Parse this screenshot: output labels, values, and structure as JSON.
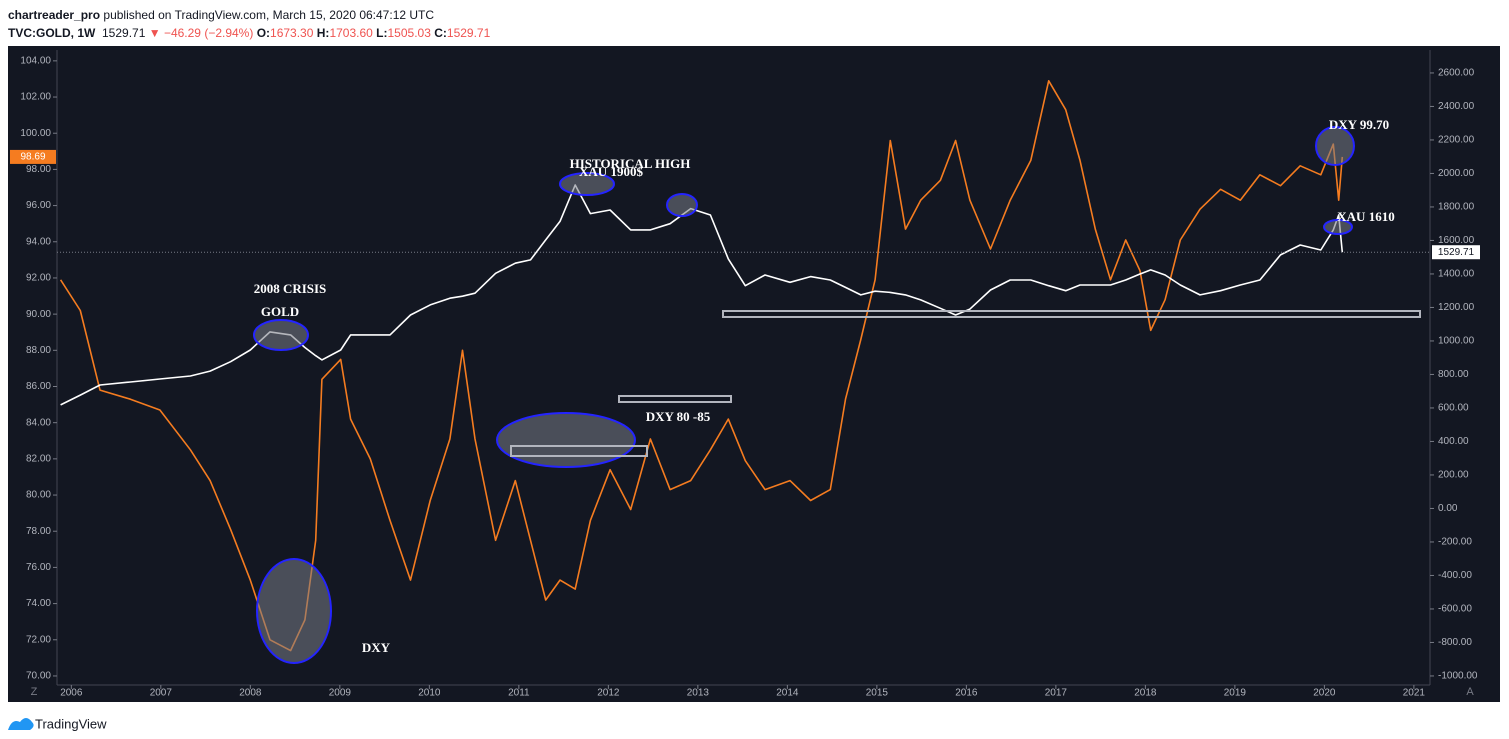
{
  "header": {
    "author": "chartreader_pro",
    "published": "published on TradingView.com, March 15, 2020 06:47:12 UTC",
    "symbol": "TVC:GOLD, 1W",
    "last": "1529.71",
    "change": "▼ −46.29 (−2.94%)",
    "o_label": "O:",
    "o": "1673.30",
    "h_label": "H:",
    "h": "1703.60",
    "l_label": "L:",
    "l": "1505.03",
    "c_label": "C:",
    "c": "1529.71"
  },
  "footer": {
    "brand": "TradingView"
  },
  "axis_buttons": [
    "Z",
    "A"
  ],
  "chart_data": {
    "type": "line",
    "x": [
      2005.88,
      2006.1,
      2006.32,
      2006.66,
      2006.99,
      2007.33,
      2007.55,
      2007.78,
      2008.0,
      2008.22,
      2008.45,
      2008.61,
      2008.73,
      2008.8,
      2009.01,
      2009.12,
      2009.34,
      2009.56,
      2009.79,
      2010.01,
      2010.23,
      2010.37,
      2010.51,
      2010.74,
      2010.96,
      2011.13,
      2011.3,
      2011.46,
      2011.63,
      2011.8,
      2012.02,
      2012.25,
      2012.47,
      2012.69,
      2012.92,
      2013.14,
      2013.34,
      2013.53,
      2013.75,
      2014.03,
      2014.26,
      2014.48,
      2014.65,
      2014.82,
      2014.98,
      2015.15,
      2015.32,
      2015.49,
      2015.71,
      2015.88,
      2016.04,
      2016.27,
      2016.49,
      2016.72,
      2016.92,
      2017.11,
      2017.27,
      2017.44,
      2017.61,
      2017.78,
      2017.94,
      2018.06,
      2018.22,
      2018.39,
      2018.61,
      2018.84,
      2019.06,
      2019.28,
      2019.51,
      2019.73,
      2019.96,
      2020.1,
      2020.16,
      2020.2
    ],
    "series": [
      {
        "name": "DXY",
        "color": "#f57c20",
        "axis": "y",
        "values": [
          91.9,
          90.2,
          85.8,
          85.3,
          84.7,
          82.5,
          80.8,
          78.1,
          75.3,
          72.0,
          71.4,
          73.1,
          77.5,
          86.4,
          87.5,
          84.2,
          82.0,
          78.6,
          75.3,
          79.7,
          83.1,
          88.0,
          83.1,
          77.5,
          80.8,
          77.5,
          74.2,
          75.3,
          74.8,
          78.6,
          81.4,
          79.2,
          83.1,
          80.3,
          80.8,
          82.5,
          84.2,
          81.9,
          80.3,
          80.8,
          79.7,
          80.3,
          85.3,
          88.6,
          91.9,
          99.6,
          94.7,
          96.3,
          97.4,
          99.6,
          96.3,
          93.6,
          96.3,
          98.5,
          102.9,
          101.3,
          98.5,
          94.7,
          91.9,
          94.1,
          92.4,
          89.1,
          90.8,
          94.1,
          95.8,
          96.9,
          96.3,
          97.7,
          97.1,
          98.2,
          97.7,
          99.4,
          96.3,
          98.69
        ]
      },
      {
        "name": "TVC:GOLD",
        "color": "#ffffff",
        "axis": "y2",
        "values": [
          618,
          677,
          737,
          755,
          773,
          791,
          820,
          876,
          946,
          1054,
          1036,
          961,
          912,
          887,
          946,
          1036,
          1036,
          1036,
          1155,
          1215,
          1255,
          1267,
          1285,
          1404,
          1464,
          1484,
          1603,
          1714,
          1931,
          1760,
          1782,
          1663,
          1663,
          1700,
          1790,
          1752,
          1490,
          1330,
          1394,
          1350,
          1384,
          1364,
          1320,
          1275,
          1297,
          1290,
          1275,
          1245,
          1195,
          1155,
          1190,
          1304,
          1364,
          1364,
          1330,
          1300,
          1334,
          1334,
          1334,
          1364,
          1400,
          1424,
          1394,
          1334,
          1275,
          1300,
          1334,
          1364,
          1514,
          1573,
          1543,
          1663,
          1752,
          1529.71
        ]
      }
    ],
    "xlim": [
      2005.84,
      2021.18
    ],
    "xticks": [
      2006,
      2007,
      2008,
      2009,
      2010,
      2011,
      2012,
      2013,
      2014,
      2015,
      2016,
      2017,
      2018,
      2019,
      2020,
      2021
    ],
    "ylim": [
      69.5,
      104.6
    ],
    "yticks": [
      {
        "value": 70,
        "label": "70.00"
      },
      {
        "value": 72,
        "label": "72.00"
      },
      {
        "value": 74,
        "label": "74.00"
      },
      {
        "value": 76,
        "label": "76.00"
      },
      {
        "value": 78,
        "label": "78.00"
      },
      {
        "value": 80,
        "label": "80.00"
      },
      {
        "value": 82,
        "label": "82.00"
      },
      {
        "value": 84,
        "label": "84.00"
      },
      {
        "value": 86,
        "label": "86.00"
      },
      {
        "value": 88,
        "label": "88.00"
      },
      {
        "value": 90,
        "label": "90.00"
      },
      {
        "value": 92,
        "label": "92.00"
      },
      {
        "value": 94,
        "label": "94.00"
      },
      {
        "value": 96,
        "label": "96.00"
      },
      {
        "value": 98,
        "label": "98.00"
      },
      {
        "value": 100,
        "label": "100.00"
      },
      {
        "value": 102,
        "label": "102.00"
      },
      {
        "value": 104,
        "label": "104.00"
      }
    ],
    "y2lim": [
      -1054,
      2737
    ],
    "y2ticks": [
      {
        "value": -1000,
        "label": "-1000.00"
      },
      {
        "value": -800,
        "label": "-800.00"
      },
      {
        "value": -600,
        "label": "-600.00"
      },
      {
        "value": -400,
        "label": "-400.00"
      },
      {
        "value": -200,
        "label": "-200.00"
      },
      {
        "value": 0,
        "label": "0.00"
      },
      {
        "value": 200,
        "label": "200.00"
      },
      {
        "value": 400,
        "label": "400.00"
      },
      {
        "value": 600,
        "label": "600.00"
      },
      {
        "value": 800,
        "label": "800.00"
      },
      {
        "value": 1000,
        "label": "1000.00"
      },
      {
        "value": 1200,
        "label": "1200.00"
      },
      {
        "value": 1400,
        "label": "1400.00"
      },
      {
        "value": 1600,
        "label": "1600.00"
      },
      {
        "value": 1800,
        "label": "1800.00"
      },
      {
        "value": 2000,
        "label": "2000.00"
      },
      {
        "value": 2200,
        "label": "2200.00"
      },
      {
        "value": 2400,
        "label": "2400.00"
      },
      {
        "value": 2600,
        "label": "2600.00"
      }
    ],
    "background": "#131722",
    "annotations": [
      "HISTORICAL HIGH",
      "XAU 1900$",
      "2008 CRISIS",
      "GOLD",
      "DXY 80 -85",
      "DXY",
      "DXY 99.70",
      "XAU 1610"
    ]
  }
}
